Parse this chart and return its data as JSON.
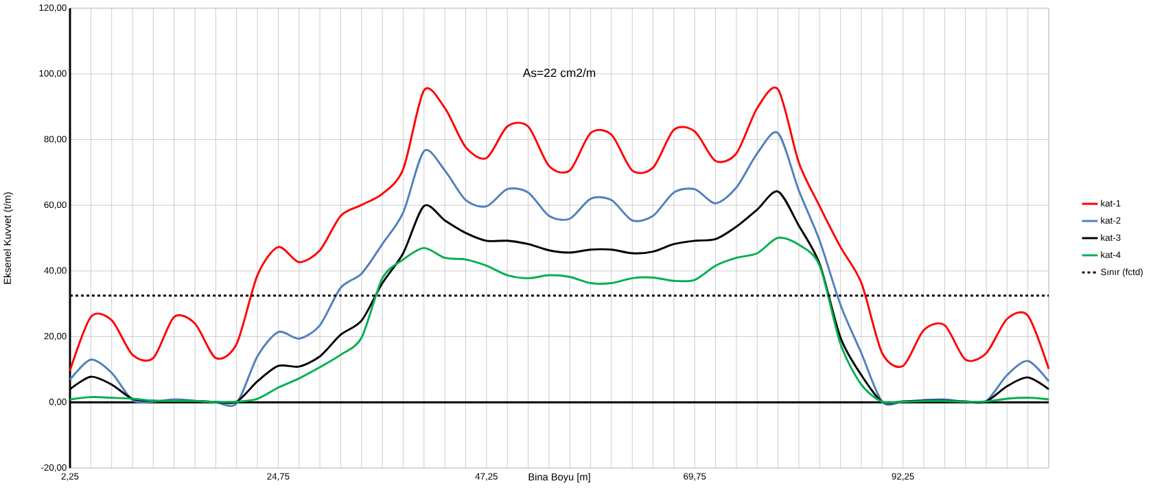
{
  "chart_data": {
    "type": "line",
    "xlabel": "Bina Boyu [m]",
    "ylabel": "Eksenel Kuvvet (t/m)",
    "annotations": [
      "As=22 cm2/m"
    ],
    "x": [
      2.25,
      4.5,
      6.75,
      9,
      11.25,
      13.5,
      15.75,
      18,
      20.25,
      22.5,
      24.75,
      27,
      29.25,
      31.5,
      33.75,
      36,
      38.25,
      40.5,
      42.75,
      45,
      47.25,
      49.5,
      51.75,
      54,
      56.25,
      58.5,
      60.75,
      63,
      65.25,
      67.5,
      69.75,
      72,
      74.25,
      76.5,
      78.75,
      81,
      83.25,
      85.5,
      87.75,
      90,
      92.25,
      94.5,
      96.75,
      99,
      101.25,
      103.5,
      105.75,
      108
    ],
    "series": [
      {
        "name": "kat-1",
        "color": "#ff0000",
        "values": [
          9.7,
          26,
          25,
          14.5,
          13.5,
          26,
          24,
          13.5,
          17.8,
          38.7,
          47.3,
          42.7,
          46.3,
          56.8,
          60.1,
          63.5,
          71,
          95,
          89.6,
          77.7,
          74.4,
          84,
          84,
          72,
          70.6,
          82,
          81.5,
          70.6,
          71.5,
          83,
          82.5,
          73.5,
          75.8,
          89.6,
          95.3,
          73,
          59.7,
          47.3,
          36.4,
          15,
          11.1,
          22,
          23.5,
          13,
          15,
          25.4,
          26.4,
          10.2
        ]
      },
      {
        "name": "kat-2",
        "color": "#4f81bd",
        "values": [
          6.9,
          13,
          9,
          0.7,
          0.2,
          0.9,
          0.5,
          0,
          -0.3,
          14,
          21.4,
          19.4,
          23.5,
          34.9,
          39.2,
          48.2,
          57.8,
          76.5,
          70.6,
          61.6,
          59.7,
          64.9,
          63.9,
          56.8,
          55.9,
          62,
          61.6,
          55.4,
          56.8,
          63.9,
          64.9,
          60.6,
          65.4,
          75.8,
          82,
          64.5,
          49.2,
          29.7,
          15,
          0.2,
          0.2,
          0.7,
          0.9,
          0.2,
          0.4,
          8.3,
          12.6,
          6.4
        ]
      },
      {
        "name": "kat-3",
        "color": "#000000",
        "values": [
          4,
          7.8,
          5.4,
          1.1,
          0.5,
          0.4,
          0.4,
          0.1,
          0.2,
          6.4,
          11.1,
          10.9,
          14,
          20.6,
          24.9,
          36.3,
          45.4,
          59.8,
          55.4,
          51.6,
          49.2,
          49.2,
          48.2,
          46.3,
          45.6,
          46.5,
          46.5,
          45.4,
          45.9,
          48.2,
          49.2,
          49.7,
          53.5,
          58.7,
          64.2,
          53.8,
          42.1,
          19.7,
          8.3,
          0.2,
          0.3,
          0.5,
          0.5,
          0.3,
          0.3,
          4.9,
          7.6,
          4
        ]
      },
      {
        "name": "kat-4",
        "color": "#00b050",
        "values": [
          0.9,
          1.6,
          1.4,
          1.1,
          0.5,
          0.4,
          0.4,
          0.1,
          0.2,
          1.1,
          4.5,
          7.3,
          10.7,
          14.5,
          19.7,
          37.8,
          43.5,
          47,
          44,
          43.5,
          41.6,
          38.7,
          37.8,
          38.7,
          38.2,
          36.3,
          36.3,
          37.8,
          38,
          37,
          37.3,
          41.6,
          44,
          45.4,
          50.1,
          48,
          41.6,
          17.8,
          5.4,
          0.2,
          0.2,
          0.4,
          0.4,
          0.2,
          0.3,
          1.1,
          1.4,
          0.9
        ]
      },
      {
        "name": "Sınır (fctd)",
        "color": "#000000",
        "line_style": "dashed",
        "values": [
          32.5,
          32.5,
          32.5,
          32.5,
          32.5,
          32.5,
          32.5,
          32.5,
          32.5,
          32.5,
          32.5,
          32.5,
          32.5,
          32.5,
          32.5,
          32.5,
          32.5,
          32.5,
          32.5,
          32.5,
          32.5,
          32.5,
          32.5,
          32.5,
          32.5,
          32.5,
          32.5,
          32.5,
          32.5,
          32.5,
          32.5,
          32.5,
          32.5,
          32.5,
          32.5,
          32.5,
          32.5,
          32.5,
          32.5,
          32.5,
          32.5,
          32.5,
          32.5,
          32.5,
          32.5,
          32.5,
          32.5,
          32.5
        ]
      }
    ],
    "xlim": [
      2.25,
      108
    ],
    "xticks": [
      {
        "value": 2.25,
        "label": "2,25"
      },
      {
        "value": 4.5,
        "label": null
      },
      {
        "value": 6.75,
        "label": null
      },
      {
        "value": 9,
        "label": null
      },
      {
        "value": 11.25,
        "label": null
      },
      {
        "value": 13.5,
        "label": null
      },
      {
        "value": 15.75,
        "label": null
      },
      {
        "value": 18,
        "label": null
      },
      {
        "value": 20.25,
        "label": null
      },
      {
        "value": 22.5,
        "label": null
      },
      {
        "value": 24.75,
        "label": "24,75"
      },
      {
        "value": 27,
        "label": null
      },
      {
        "value": 29.25,
        "label": null
      },
      {
        "value": 31.5,
        "label": null
      },
      {
        "value": 33.75,
        "label": null
      },
      {
        "value": 36,
        "label": null
      },
      {
        "value": 38.25,
        "label": null
      },
      {
        "value": 40.5,
        "label": null
      },
      {
        "value": 42.75,
        "label": null
      },
      {
        "value": 45,
        "label": null
      },
      {
        "value": 47.25,
        "label": "47,25"
      },
      {
        "value": 49.5,
        "label": null
      },
      {
        "value": 51.75,
        "label": null
      },
      {
        "value": 54,
        "label": null
      },
      {
        "value": 56.25,
        "label": null
      },
      {
        "value": 58.5,
        "label": null
      },
      {
        "value": 60.75,
        "label": null
      },
      {
        "value": 63,
        "label": null
      },
      {
        "value": 65.25,
        "label": null
      },
      {
        "value": 67.5,
        "label": null
      },
      {
        "value": 69.75,
        "label": "69,75"
      },
      {
        "value": 72,
        "label": null
      },
      {
        "value": 74.25,
        "label": null
      },
      {
        "value": 76.5,
        "label": null
      },
      {
        "value": 78.75,
        "label": null
      },
      {
        "value": 81,
        "label": null
      },
      {
        "value": 83.25,
        "label": null
      },
      {
        "value": 85.5,
        "label": null
      },
      {
        "value": 87.75,
        "label": null
      },
      {
        "value": 90,
        "label": null
      },
      {
        "value": 92.25,
        "label": "92,25"
      },
      {
        "value": 94.5,
        "label": null
      },
      {
        "value": 96.75,
        "label": null
      },
      {
        "value": 99,
        "label": null
      },
      {
        "value": 101.25,
        "label": null
      },
      {
        "value": 103.5,
        "label": null
      },
      {
        "value": 105.75,
        "label": null
      },
      {
        "value": 108,
        "label": null
      }
    ],
    "ylim": [
      -20,
      120
    ],
    "yticks": [
      {
        "value": -20,
        "label": "-20,00"
      },
      {
        "value": 0,
        "label": "0,00"
      },
      {
        "value": 20,
        "label": "20,00"
      },
      {
        "value": 40,
        "label": "40,00"
      },
      {
        "value": 60,
        "label": "60,00"
      },
      {
        "value": 80,
        "label": "80,00"
      },
      {
        "value": 100,
        "label": "100,00"
      },
      {
        "value": 120,
        "label": "120,00"
      }
    ],
    "grid": true,
    "legend": "right",
    "marker": "none"
  }
}
